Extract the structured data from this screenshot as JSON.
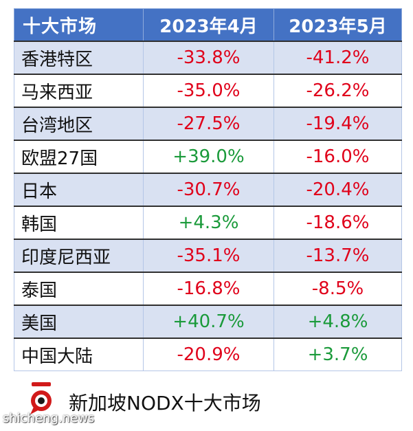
{
  "table": {
    "headers": [
      "十大市场",
      "2023年4月",
      "2023年5月"
    ],
    "rows": [
      {
        "market": "香港特区",
        "apr": "-33.8%",
        "may": "-41.2%"
      },
      {
        "market": "马来西亚",
        "apr": "-35.0%",
        "may": "-26.2%"
      },
      {
        "market": "台湾地区",
        "apr": "-27.5%",
        "may": "-19.4%"
      },
      {
        "market": "欧盟27国",
        "apr": "+39.0%",
        "may": "-16.0%"
      },
      {
        "market": "日本",
        "apr": "-30.7%",
        "may": "-20.4%"
      },
      {
        "market": "韩国",
        "apr": "+4.3%",
        "may": "-18.6%"
      },
      {
        "market": "印度尼西亚",
        "apr": "-35.1%",
        "may": "-13.7%"
      },
      {
        "market": "泰国",
        "apr": "-16.8%",
        "may": "-8.5%"
      },
      {
        "market": "美国",
        "apr": "+40.7%",
        "may": "+4.8%"
      },
      {
        "market": "中国大陆",
        "apr": "-20.9%",
        "may": "+3.7%"
      }
    ]
  },
  "footer": {
    "title": "新加坡NODX十大市场",
    "logo_icon": "red-speech-bubble-logo-icon"
  },
  "watermark": "shicheng.news",
  "colors": {
    "header_bg": "#4472c4",
    "band_bg": "#d9e1f2",
    "negative": "#e0001a",
    "positive": "#1a9a3a"
  }
}
